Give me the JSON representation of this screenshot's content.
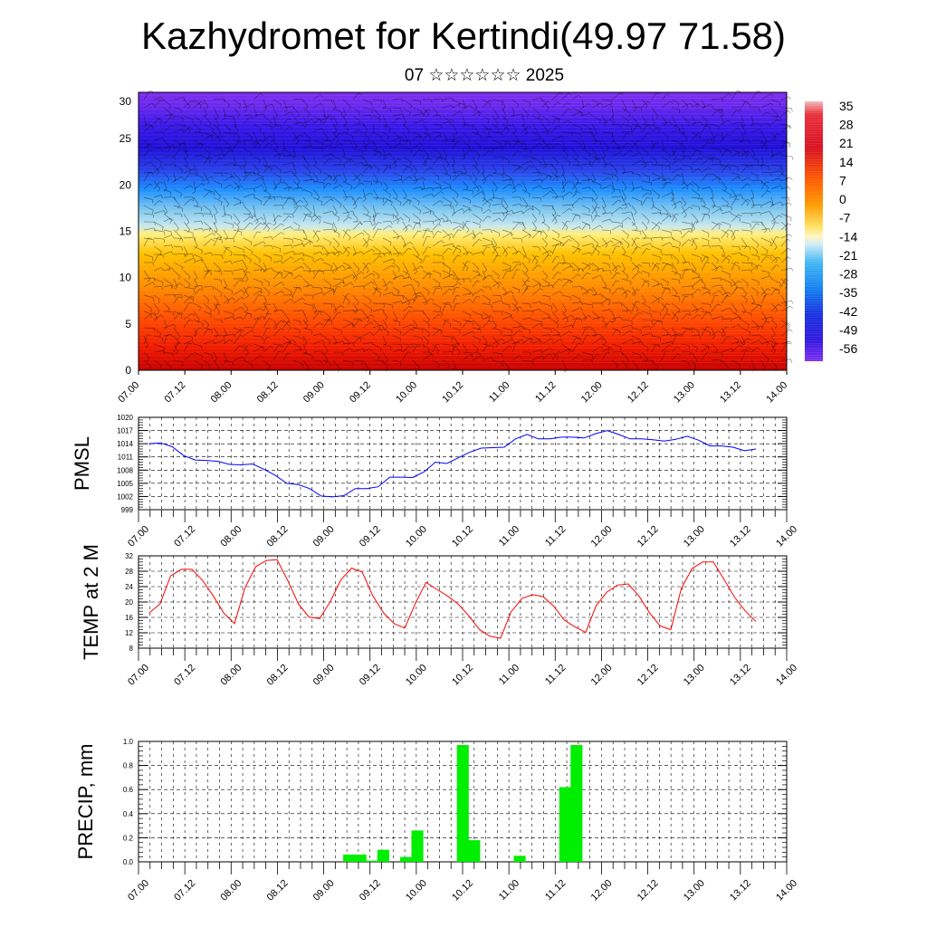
{
  "title": "Kazhydromet for Kertindi(49.97 71.58)",
  "subtitle": "07 ☆☆☆☆☆☆ 2025",
  "chart_data": [
    {
      "type": "heatmap",
      "title": "",
      "ylim": [
        0,
        30
      ],
      "y_ticks": [
        "0",
        "5",
        "10",
        "15",
        "20",
        "25",
        "30"
      ],
      "x_ticks": [
        "07.00",
        "07.12",
        "08.00",
        "08.12",
        "09.00",
        "09.12",
        "10.00",
        "10.12",
        "11.00",
        "11.12",
        "12.00",
        "12.12",
        "13.00",
        "13.12",
        "14.00"
      ],
      "colorbar_labels": [
        "35",
        "28",
        "21",
        "14",
        "7",
        "0",
        "-7",
        "-14",
        "-21",
        "-28",
        "-35",
        "-42",
        "-49",
        "-56"
      ],
      "colorbar_range": [
        -60,
        38
      ],
      "overlay": "wind barbs"
    },
    {
      "type": "line",
      "ylabel": "PMSL",
      "ylim": [
        999,
        1020
      ],
      "y_ticks": [
        "999",
        "1002",
        "1005",
        "1008",
        "1011",
        "1014",
        "1017",
        "1020"
      ],
      "x_ticks": [
        "07.00",
        "07.12",
        "08.00",
        "08.12",
        "09.00",
        "09.12",
        "10.00",
        "10.12",
        "11.00",
        "11.12",
        "12.00",
        "12.12",
        "13.00",
        "13.12",
        "14.00"
      ],
      "color": "#0000ff",
      "values": [
        1014,
        1014.2,
        1013.3,
        1011.3,
        1010.3,
        1010.2,
        1010,
        1009.3,
        1009.2,
        1009.4,
        1008.2,
        1006.8,
        1005,
        1004.7,
        1003.8,
        1002.1,
        1001.9,
        1002.2,
        1003.8,
        1003.8,
        1004.2,
        1006.4,
        1006.4,
        1006.3,
        1007.6,
        1009.8,
        1009.5,
        1010.8,
        1012.1,
        1013,
        1013.1,
        1013.2,
        1015.1,
        1016.1,
        1015.1,
        1015.1,
        1015.5,
        1015.5,
        1015.3,
        1016.3,
        1017,
        1016.1,
        1015.1,
        1015.1,
        1014.9,
        1014.6,
        1015,
        1015.7,
        1014.8,
        1013.5,
        1013.5,
        1013.2,
        1012.4,
        1012.8
      ]
    },
    {
      "type": "line",
      "ylabel": "TEMP at 2 M",
      "ylim": [
        8,
        32
      ],
      "y_ticks": [
        "8",
        "12",
        "16",
        "20",
        "24",
        "28",
        "32"
      ],
      "x_ticks": [
        "07.00",
        "07.12",
        "08.00",
        "08.12",
        "09.00",
        "09.12",
        "10.00",
        "10.12",
        "11.00",
        "11.12",
        "12.00",
        "12.12",
        "13.00",
        "13.12",
        "14.00"
      ],
      "color": "#ff0000",
      "values": [
        17.2,
        19.5,
        26.8,
        28.5,
        28.5,
        25.6,
        21.6,
        17.1,
        14.4,
        23.8,
        29.2,
        30.8,
        31,
        25.6,
        19.5,
        16.1,
        15.7,
        20.1,
        25.8,
        28.8,
        27.8,
        21.6,
        17.2,
        14.4,
        13.2,
        19.7,
        25.1,
        23.3,
        21.6,
        19.5,
        16.5,
        12.9,
        11.1,
        10.6,
        17.4,
        20.9,
        21.9,
        21.4,
        18.9,
        15.3,
        13.5,
        12.1,
        19.1,
        22.6,
        24.4,
        24.7,
        21.6,
        17.2,
        13.8,
        12.8,
        23.6,
        28.7,
        30.4,
        30.4,
        25.9,
        21.2,
        17.7,
        14.9
      ]
    },
    {
      "type": "bar",
      "ylabel": "PRECIP, mm",
      "ylim": [
        0,
        1
      ],
      "y_ticks": [
        "0.0",
        "0.2",
        "0.4",
        "0.6",
        "0.8",
        "1.0"
      ],
      "x_ticks": [
        "07.00",
        "07.12",
        "08.00",
        "08.12",
        "09.00",
        "09.12",
        "10.00",
        "10.12",
        "11.00",
        "11.12",
        "12.00",
        "12.12",
        "13.00",
        "13.12",
        "14.00"
      ],
      "color": "#00ee00",
      "values": [
        0,
        0,
        0,
        0,
        0,
        0,
        0,
        0,
        0,
        0,
        0,
        0,
        0,
        0,
        0,
        0,
        0,
        0,
        0.06,
        0.06,
        0.01,
        0.1,
        0,
        0.04,
        0.26,
        0,
        0,
        0,
        0.97,
        0.18,
        0,
        0,
        0,
        0.05,
        0,
        0,
        0,
        0.62,
        0.97,
        0,
        0,
        0,
        0,
        0,
        0,
        0,
        0,
        0,
        0,
        0,
        0,
        0,
        0,
        0,
        0,
        0,
        0
      ]
    }
  ]
}
